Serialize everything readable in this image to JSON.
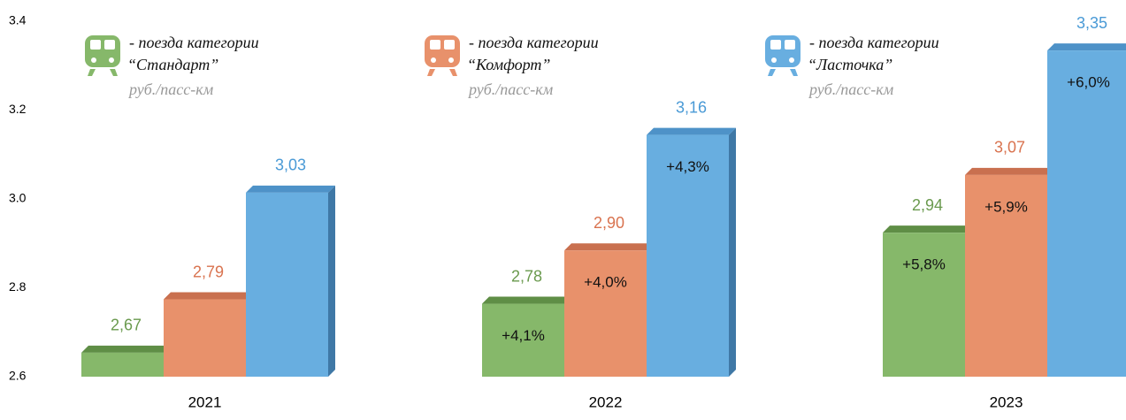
{
  "chart_data": {
    "type": "bar3d",
    "categories": [
      "2021",
      "2022",
      "2023"
    ],
    "legend_prefix": "- поезда категории",
    "unit": "руб./пасс-км",
    "ylim": [
      2.6,
      3.4
    ],
    "yticks": [
      2.6,
      2.8,
      {
        "value": 3,
        "label": "3.0"
      },
      3.2,
      3.4
    ],
    "series": [
      {
        "name": "“Стандарт”",
        "color": "#86b86a",
        "top_color": "#5f8e46",
        "label_color": "#6a9a4e",
        "values": [
          2.67,
          2.78,
          2.94
        ],
        "value_labels": [
          "2,67",
          "2,78",
          "2,94"
        ],
        "change_labels": [
          null,
          "+4,1%",
          "+5,8%"
        ]
      },
      {
        "name": "“Комфорт”",
        "color": "#e8916b",
        "top_color": "#c9704f",
        "label_color": "#d9734f",
        "values": [
          2.79,
          2.9,
          3.07
        ],
        "value_labels": [
          "2,79",
          "2,90",
          "3,07"
        ],
        "change_labels": [
          null,
          "+4,0%",
          "+5,9%"
        ]
      },
      {
        "name": "“Ласточка”",
        "color": "#68aee0",
        "top_color": "#4e92c8",
        "side_color": "#3f78a6",
        "label_color": "#4a9ad6",
        "values": [
          3.03,
          3.16,
          3.35
        ],
        "value_labels": [
          "3,03",
          "3,16",
          "3,35"
        ],
        "change_labels": [
          null,
          "+4,3%",
          "+6,0%"
        ]
      }
    ]
  }
}
